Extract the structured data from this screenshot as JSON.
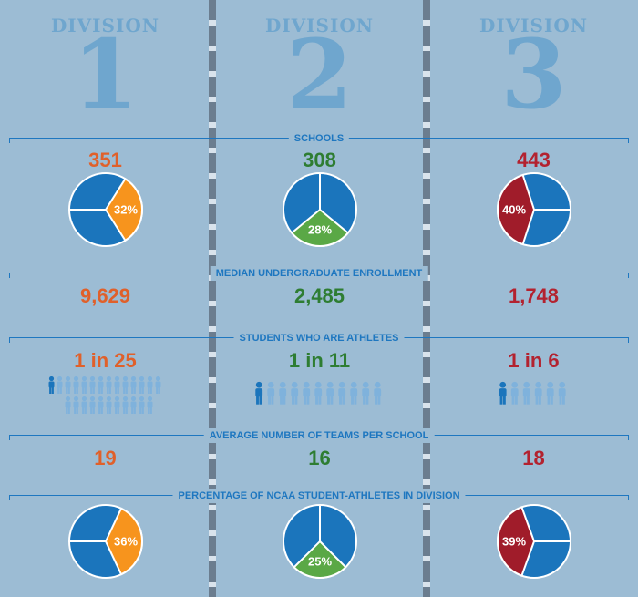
{
  "chart_data": {
    "type": "pie",
    "divisions": [
      {
        "label": "DIVISION",
        "number": "1",
        "accent": "#e0602a",
        "schools": "351",
        "schools_pct": "32%",
        "schools_pct_value": 32,
        "schools_slice_color": "#f7941d",
        "enrollment": "9,629",
        "athletes_ratio": "1 in 25",
        "athletes_of": 25,
        "teams": "19",
        "athletes_share": "36%",
        "athletes_share_value": 36,
        "athletes_slice_color": "#f7941d"
      },
      {
        "label": "DIVISION",
        "number": "2",
        "accent": "#2e7d32",
        "schools": "308",
        "schools_pct": "28%",
        "schools_pct_value": 28,
        "schools_slice_color": "#5aa846",
        "enrollment": "2,485",
        "athletes_ratio": "1 in 11",
        "athletes_of": 11,
        "teams": "16",
        "athletes_share": "25%",
        "athletes_share_value": 25,
        "athletes_slice_color": "#5aa846"
      },
      {
        "label": "DIVISION",
        "number": "3",
        "accent": "#b3222f",
        "schools": "443",
        "schools_pct": "40%",
        "schools_pct_value": 40,
        "schools_slice_color": "#a01c2a",
        "enrollment": "1,748",
        "athletes_ratio": "1 in 6",
        "athletes_of": 6,
        "teams": "18",
        "athletes_share": "39%",
        "athletes_share_value": 39,
        "athletes_slice_color": "#a01c2a"
      }
    ]
  },
  "sections": {
    "schools": "SCHOOLS",
    "enrollment": "MEDIAN UNDERGRADUATE ENROLLMENT",
    "athletes": "STUDENTS WHO ARE ATHLETES",
    "teams": "AVERAGE NUMBER OF TEAMS PER SCHOOL",
    "share": "PERCENTAGE OF NCAA STUDENT-ATHLETES IN DIVISION"
  },
  "colors": {
    "background": "#9cbcd4",
    "pie_base": "#1b75bc",
    "label_blue": "#1e77c0",
    "person_highlight": "#1b75bc",
    "person_light": "#7fb2dc"
  }
}
